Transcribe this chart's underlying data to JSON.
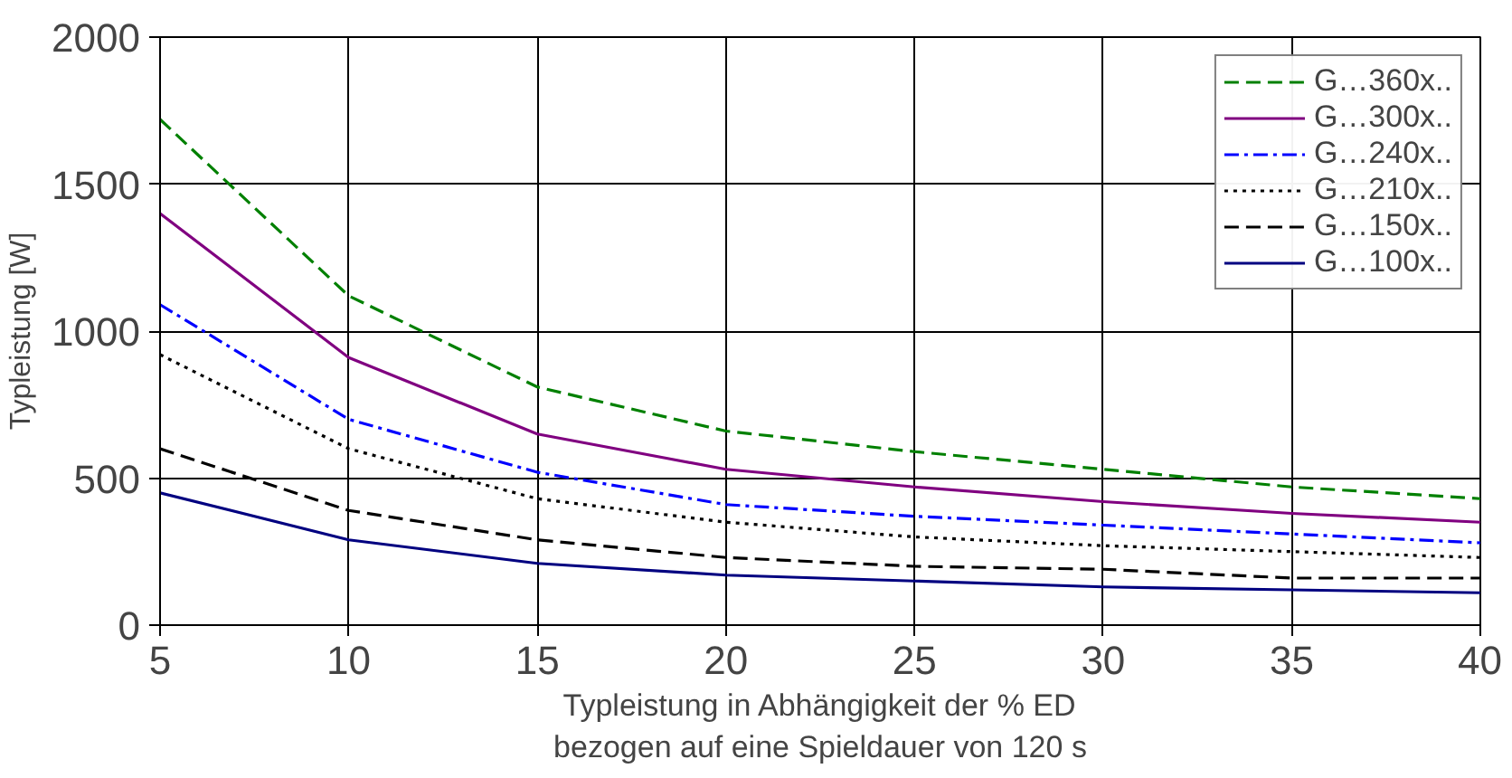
{
  "chart_data": {
    "type": "line",
    "xlabel": "Typleistung in Abhängigkeit der % ED\nbezogen auf eine Spieldauer von 120 s",
    "ylabel": "Typleistung [W]",
    "x": [
      5,
      10,
      15,
      20,
      25,
      30,
      35,
      40
    ],
    "series": [
      {
        "name": "G…360x..",
        "color": "#008000",
        "line_style": "dashed",
        "values": [
          1720,
          1120,
          810,
          660,
          590,
          530,
          470,
          430
        ]
      },
      {
        "name": "G…300x..",
        "color": "#800080",
        "line_style": "solid",
        "values": [
          1400,
          910,
          650,
          530,
          470,
          420,
          380,
          350
        ]
      },
      {
        "name": "G…240x..",
        "color": "#0000ff",
        "line_style": "dashdot",
        "values": [
          1090,
          700,
          520,
          410,
          370,
          340,
          310,
          280
        ]
      },
      {
        "name": "G…210x..",
        "color": "#000000",
        "line_style": "dotted",
        "values": [
          920,
          600,
          430,
          350,
          300,
          270,
          250,
          230
        ]
      },
      {
        "name": "G…150x..",
        "color": "#000000",
        "line_style": "dashed",
        "values": [
          600,
          390,
          290,
          230,
          200,
          190,
          160,
          160
        ]
      },
      {
        "name": "G…100x..",
        "color": "#000080",
        "line_style": "solid",
        "values": [
          450,
          290,
          210,
          170,
          150,
          130,
          120,
          110
        ]
      }
    ],
    "xlim": [
      5,
      40
    ],
    "ylim": [
      0,
      2000
    ],
    "xticks": [
      5,
      10,
      15,
      20,
      25,
      30,
      35,
      40
    ],
    "yticks": [
      0,
      500,
      1000,
      1500,
      2000
    ],
    "grid": true,
    "legend": "top right",
    "marker": "none"
  }
}
